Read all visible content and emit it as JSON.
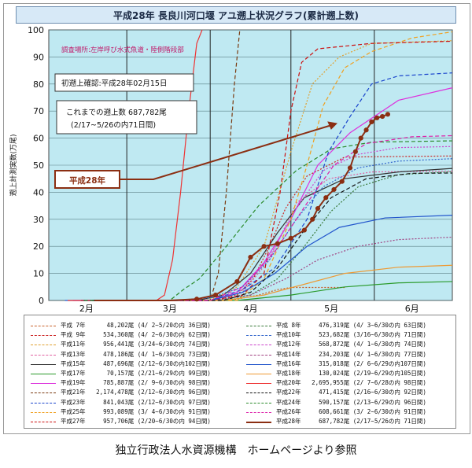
{
  "chart_data": {
    "type": "line",
    "title": "平成28年 長良川河口堰 アユ遡上状況グラフ(累計遡上数)",
    "ylabel": "遡上計測実数(万尾)",
    "ylim": [
      0,
      100
    ],
    "yticks": [
      "0",
      "10",
      "20",
      "30",
      "40",
      "50",
      "60",
      "70",
      "80",
      "90",
      "100"
    ],
    "xticks": [
      "2月",
      "3月",
      "4月",
      "5月",
      "6月"
    ],
    "grid": true,
    "annotations": {
      "survey_site": "調査場所:左岸呼び水式魚道・陸側階段部",
      "first_confirm": "初遡上確認:平成28年02月15日",
      "total_line1": "これまでの遡上数  687,782尾",
      "total_line2": "(2/17~5/26の内71日間)",
      "year_callout": "平成28年"
    },
    "series": [
      {
        "name": "平成 7年",
        "total": "48,202尾",
        "period": "(4/ 2~5/20の内 36日間)",
        "color": "#c8602a",
        "dash": "2,2",
        "marker": false,
        "points": [
          [
            62,
            0
          ],
          [
            70,
            0.5
          ],
          [
            78,
            2
          ],
          [
            85,
            4
          ],
          [
            90,
            4.8
          ],
          [
            110,
            4.8
          ]
        ]
      },
      {
        "name": "平成 9年",
        "total": "534,360尾",
        "period": "(4/ 2~6/30の内 62日間)",
        "color": "#cc2222",
        "dash": "2,2",
        "marker": false,
        "points": [
          [
            62,
            0
          ],
          [
            70,
            2
          ],
          [
            76,
            8
          ],
          [
            82,
            20
          ],
          [
            88,
            34
          ],
          [
            96,
            46
          ],
          [
            110,
            53
          ],
          [
            150,
            53.4
          ]
        ]
      },
      {
        "name": "平成11年",
        "total": "956,441尾",
        "period": "(3/24~6/30の内 74日間)",
        "color": "#e0a030",
        "dash": "2,2",
        "marker": false,
        "points": [
          [
            54,
            0
          ],
          [
            62,
            1
          ],
          [
            70,
            5
          ],
          [
            80,
            20
          ],
          [
            90,
            55
          ],
          [
            98,
            80
          ],
          [
            108,
            90
          ],
          [
            120,
            95
          ],
          [
            150,
            96
          ]
        ]
      },
      {
        "name": "平成13年",
        "total": "478,186尾",
        "period": "(4/ 1~6/30の内 73日間)",
        "color": "#e060a0",
        "dash": "2,2",
        "marker": false,
        "points": [
          [
            61,
            0
          ],
          [
            72,
            3
          ],
          [
            82,
            15
          ],
          [
            92,
            36
          ],
          [
            104,
            45
          ],
          [
            120,
            47.5
          ],
          [
            150,
            47.8
          ]
        ]
      },
      {
        "name": "平成15年",
        "total": "487,696尾",
        "period": "(2/12~6/30の内102日間)",
        "color": "#333333",
        "dash": "",
        "marker": false,
        "points": [
          [
            12,
            0
          ],
          [
            55,
            0
          ],
          [
            65,
            2
          ],
          [
            75,
            10
          ],
          [
            85,
            25
          ],
          [
            95,
            38
          ],
          [
            110,
            45
          ],
          [
            130,
            47.5
          ],
          [
            150,
            48.8
          ]
        ]
      },
      {
        "name": "平成17年",
        "total": "70,157尾",
        "period": "(2/21~6/29の内 99日間)",
        "color": "#2a9a2a",
        "dash": "",
        "marker": false,
        "points": [
          [
            21,
            0
          ],
          [
            70,
            0
          ],
          [
            90,
            2
          ],
          [
            110,
            5
          ],
          [
            130,
            6.5
          ],
          [
            150,
            7
          ]
        ]
      },
      {
        "name": "平成19年",
        "total": "785,887尾",
        "period": "(2/ 9~6/30の内 98日間)",
        "color": "#dd33dd",
        "dash": "",
        "marker": false,
        "points": [
          [
            9,
            0
          ],
          [
            60,
            0
          ],
          [
            70,
            3
          ],
          [
            80,
            14
          ],
          [
            90,
            30
          ],
          [
            100,
            50
          ],
          [
            112,
            62
          ],
          [
            130,
            74
          ],
          [
            150,
            78.6
          ]
        ]
      },
      {
        "name": "平成21年",
        "total": "2,174,478尾",
        "period": "(2/12~6/30の内 96日間)",
        "color": "#7a3a10",
        "dash": "5,3",
        "marker": false,
        "points": [
          [
            12,
            0
          ],
          [
            60,
            0
          ],
          [
            63,
            10
          ],
          [
            66,
            40
          ],
          [
            69,
            80
          ],
          [
            71,
            100
          ]
        ]
      },
      {
        "name": "平成23年",
        "total": "841,043尾",
        "period": "(2/12~6/30の内 97日間)",
        "color": "#1a44cc",
        "dash": "5,3",
        "marker": false,
        "points": [
          [
            12,
            0
          ],
          [
            60,
            0
          ],
          [
            72,
            4
          ],
          [
            84,
            12
          ],
          [
            96,
            30
          ],
          [
            104,
            55
          ],
          [
            112,
            68
          ],
          [
            120,
            80
          ],
          [
            130,
            83
          ],
          [
            150,
            84.1
          ]
        ]
      },
      {
        "name": "平成25年",
        "total": "993,089尾",
        "period": "(3/ 4~6/30の内 91日間)",
        "color": "#f0a020",
        "dash": "5,3",
        "marker": false,
        "points": [
          [
            34,
            0
          ],
          [
            70,
            0
          ],
          [
            80,
            8
          ],
          [
            90,
            30
          ],
          [
            96,
            50
          ],
          [
            102,
            72
          ],
          [
            110,
            86
          ],
          [
            120,
            92
          ],
          [
            135,
            97
          ],
          [
            150,
            99.3
          ]
        ]
      },
      {
        "name": "平成27年",
        "total": "957,706尾",
        "period": "(2/20~6/30の内 94日間)",
        "color": "#cc1111",
        "dash": "5,3",
        "marker": false,
        "points": [
          [
            20,
            0
          ],
          [
            60,
            0
          ],
          [
            72,
            2
          ],
          [
            80,
            10
          ],
          [
            86,
            40
          ],
          [
            90,
            70
          ],
          [
            94,
            88
          ],
          [
            100,
            93
          ],
          [
            120,
            95
          ],
          [
            150,
            95.8
          ]
        ]
      },
      {
        "name": "平成 8年",
        "total": "476,319尾",
        "period": "(4/ 3~6/30の内 63日間)",
        "color": "#3a7a3a",
        "dash": "2,2",
        "marker": false,
        "points": [
          [
            63,
            0
          ],
          [
            75,
            2
          ],
          [
            85,
            8
          ],
          [
            95,
            20
          ],
          [
            105,
            33
          ],
          [
            115,
            42
          ],
          [
            130,
            46.5
          ],
          [
            150,
            47.6
          ]
        ]
      },
      {
        "name": "平成10年",
        "total": "523,682尾",
        "period": "(3/16~6/30の内 71日間)",
        "color": "#3366cc",
        "dash": "2,2",
        "marker": false,
        "points": [
          [
            46,
            0
          ],
          [
            60,
            1
          ],
          [
            72,
            5
          ],
          [
            82,
            15
          ],
          [
            92,
            30
          ],
          [
            102,
            42
          ],
          [
            115,
            49
          ],
          [
            130,
            51.5
          ],
          [
            150,
            52.4
          ]
        ]
      },
      {
        "name": "平成12年",
        "total": "568,872尾",
        "period": "(4/ 1~6/30の内 74日間)",
        "color": "#cc44cc",
        "dash": "2,2",
        "marker": false,
        "points": [
          [
            61,
            0
          ],
          [
            72,
            4
          ],
          [
            82,
            16
          ],
          [
            92,
            34
          ],
          [
            102,
            48
          ],
          [
            115,
            54
          ],
          [
            130,
            56.5
          ],
          [
            150,
            56.9
          ]
        ]
      },
      {
        "name": "平成14年",
        "total": "234,203尾",
        "period": "(4/ 1~6/30の内 77日間)",
        "color": "#a04080",
        "dash": "2,2",
        "marker": false,
        "points": [
          [
            61,
            0
          ],
          [
            75,
            2
          ],
          [
            88,
            8
          ],
          [
            100,
            15
          ],
          [
            115,
            20
          ],
          [
            130,
            22.5
          ],
          [
            150,
            23.4
          ]
        ]
      },
      {
        "name": "平成16年",
        "total": "315,018尾",
        "period": "(2/ 6~6/29の内107日間)",
        "color": "#2255cc",
        "dash": "",
        "marker": false,
        "points": [
          [
            6,
            0
          ],
          [
            60,
            0
          ],
          [
            72,
            3
          ],
          [
            84,
            10
          ],
          [
            96,
            20
          ],
          [
            108,
            27
          ],
          [
            125,
            30.5
          ],
          [
            150,
            31.5
          ]
        ]
      },
      {
        "name": "平成18年",
        "total": "130,024尾",
        "period": "(2/19~6/29の内105日間)",
        "color": "#ee9933",
        "dash": "",
        "marker": false,
        "points": [
          [
            19,
            0
          ],
          [
            65,
            0
          ],
          [
            80,
            2
          ],
          [
            95,
            6
          ],
          [
            110,
            10
          ],
          [
            130,
            12.3
          ],
          [
            150,
            13
          ]
        ]
      },
      {
        "name": "平成20年",
        "total": "2,695,955尾",
        "period": "(2/ 7~6/28の内 98日間)",
        "color": "#ee3333",
        "dash": "",
        "marker": false,
        "points": [
          [
            7,
            0
          ],
          [
            40,
            0
          ],
          [
            43,
            2
          ],
          [
            46,
            15
          ],
          [
            49,
            40
          ],
          [
            52,
            70
          ],
          [
            55,
            95
          ],
          [
            57,
            100
          ]
        ]
      },
      {
        "name": "平成22年",
        "total": "471,415尾",
        "period": "(2/16~6/30の内 92日間)",
        "color": "#111111",
        "dash": "5,3",
        "marker": false,
        "points": [
          [
            16,
            0
          ],
          [
            65,
            0
          ],
          [
            75,
            3
          ],
          [
            85,
            12
          ],
          [
            95,
            26
          ],
          [
            105,
            38
          ],
          [
            118,
            45
          ],
          [
            135,
            47
          ],
          [
            150,
            47.1
          ]
        ]
      },
      {
        "name": "平成24年",
        "total": "590,157尾",
        "period": "(2/13~6/29の内 96日間)",
        "color": "#2a8a2a",
        "dash": "5,3",
        "marker": false,
        "points": [
          [
            13,
            0
          ],
          [
            45,
            0
          ],
          [
            50,
            4
          ],
          [
            56,
            8
          ],
          [
            66,
            20
          ],
          [
            78,
            35
          ],
          [
            92,
            48
          ],
          [
            105,
            56
          ],
          [
            120,
            58.5
          ],
          [
            150,
            59
          ]
        ]
      },
      {
        "name": "平成26年",
        "total": "608,661尾",
        "period": "(3/ 2~6/30の内 91日間)",
        "color": "#dd22aa",
        "dash": "5,3",
        "marker": false,
        "points": [
          [
            32,
            0
          ],
          [
            60,
            0
          ],
          [
            72,
            5
          ],
          [
            84,
            18
          ],
          [
            96,
            36
          ],
          [
            106,
            50
          ],
          [
            118,
            58
          ],
          [
            135,
            60.5
          ],
          [
            150,
            60.9
          ]
        ]
      },
      {
        "name": "平成28年",
        "total": "687,782尾",
        "period": "(2/17~5/26の内 71日間)",
        "color": "#8b2e12",
        "dash": "",
        "marker": true,
        "points": [
          [
            17,
            0
          ],
          [
            45,
            0
          ],
          [
            55,
            0.5
          ],
          [
            62,
            2
          ],
          [
            70,
            7
          ],
          [
            75,
            16
          ],
          [
            80,
            20
          ],
          [
            85,
            21
          ],
          [
            90,
            23
          ],
          [
            95,
            26
          ],
          [
            98,
            30
          ],
          [
            100,
            34
          ],
          [
            103,
            38
          ],
          [
            106,
            41
          ],
          [
            109,
            44
          ],
          [
            112,
            49
          ],
          [
            114,
            55
          ],
          [
            116,
            60
          ],
          [
            118,
            63
          ],
          [
            120,
            66
          ],
          [
            122,
            67.5
          ],
          [
            124,
            68
          ],
          [
            126,
            68.8
          ]
        ]
      }
    ]
  }
}
